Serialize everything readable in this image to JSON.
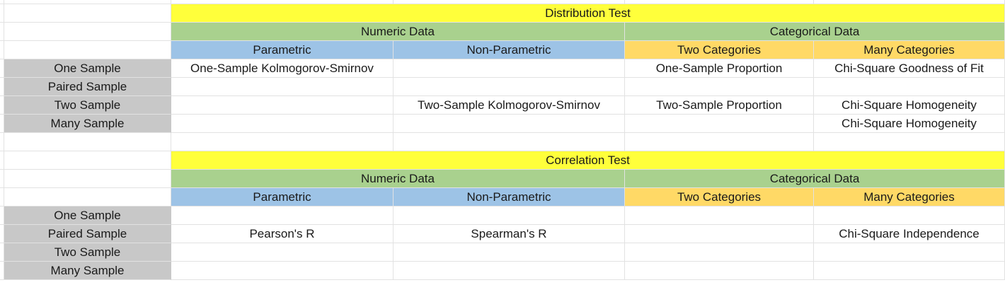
{
  "row_labels": [
    "One Sample",
    "Paired Sample",
    "Two Sample",
    "Many Sample"
  ],
  "distribution": {
    "title": "Distribution Test",
    "groups": {
      "numeric": "Numeric Data",
      "categorical": "Categorical Data"
    },
    "subgroups": {
      "parametric": "Parametric",
      "non_parametric": "Non-Parametric",
      "two_categories": "Two Categories",
      "many_categories": "Many Categories"
    },
    "cells": [
      [
        "One-Sample Kolmogorov-Smirnov",
        "",
        "One-Sample Proportion",
        "Chi-Square Goodness of Fit"
      ],
      [
        "",
        "",
        "",
        ""
      ],
      [
        "",
        "Two-Sample Kolmogorov-Smirnov",
        "Two-Sample Proportion",
        "Chi-Square Homogeneity"
      ],
      [
        "",
        "",
        "",
        "Chi-Square Homogeneity"
      ]
    ]
  },
  "correlation": {
    "title": "Correlation Test",
    "groups": {
      "numeric": "Numeric Data",
      "categorical": "Categorical Data"
    },
    "subgroups": {
      "parametric": "Parametric",
      "non_parametric": "Non-Parametric",
      "two_categories": "Two Categories",
      "many_categories": "Many Categories"
    },
    "cells": [
      [
        "",
        "",
        "",
        ""
      ],
      [
        "Pearson's R",
        "Spearman's R",
        "",
        "Chi-Square Independence"
      ],
      [
        "",
        "",
        "",
        ""
      ],
      [
        "",
        "",
        "",
        ""
      ]
    ]
  },
  "colors": {
    "title": "#ffff3b",
    "group": "#a9d18e",
    "numeric_sub": "#9dc3e6",
    "categorical_sub": "#ffd966",
    "row_label": "#c8c8c8"
  }
}
